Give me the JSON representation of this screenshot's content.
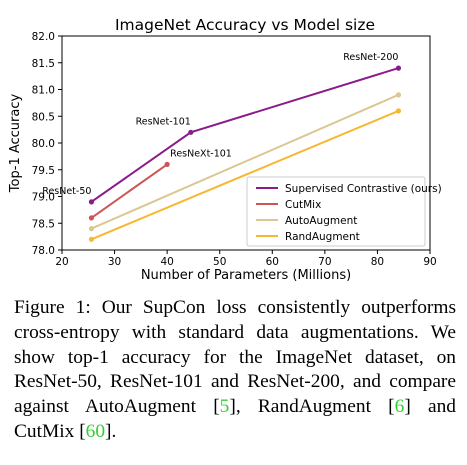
{
  "chart_data": {
    "type": "line",
    "title": "ImageNet Accuracy vs Model size",
    "xlabel": "Number of Parameters (Millions)",
    "ylabel": "Top-1 Accuracy",
    "xlim": [
      20,
      90
    ],
    "ylim": [
      78.0,
      82.0
    ],
    "xticks": [
      20,
      30,
      40,
      50,
      60,
      70,
      80,
      90
    ],
    "yticks": [
      78.0,
      78.5,
      79.0,
      79.5,
      80.0,
      80.5,
      81.0,
      81.5,
      82.0
    ],
    "grid": false,
    "legend_position": "lower-right",
    "series": [
      {
        "name": "Supervised Contrastive (ours)",
        "color": "#8b1a8b",
        "x": [
          25.6,
          44.5,
          84.0
        ],
        "y": [
          78.9,
          80.2,
          81.4
        ]
      },
      {
        "name": "CutMix",
        "color": "#cc5555",
        "x": [
          25.6,
          40.0
        ],
        "y": [
          78.6,
          79.6
        ]
      },
      {
        "name": "AutoAugment",
        "color": "#d9c891",
        "x": [
          25.6,
          84.0
        ],
        "y": [
          78.4,
          80.9
        ]
      },
      {
        "name": "RandAugment",
        "color": "#f7b731",
        "x": [
          25.6,
          84.0
        ],
        "y": [
          78.2,
          80.6
        ]
      }
    ],
    "annotations": [
      {
        "text": "ResNet-50",
        "x": 25.6,
        "y": 78.9,
        "anchor": "end"
      },
      {
        "text": "ResNet-101",
        "x": 44.5,
        "y": 80.2,
        "anchor": "end"
      },
      {
        "text": "ResNeXt-101",
        "x": 40.0,
        "y": 79.6,
        "anchor": "start"
      },
      {
        "text": "ResNet-200",
        "x": 84.0,
        "y": 81.4,
        "anchor": "end"
      }
    ]
  },
  "caption": {
    "lead": "Figure 1: Our SupCon loss consistently outperforms cross-entropy with standard data augmentations. We show top-1 accuracy for the ImageNet dataset, on ResNet-50, ResNet-101 and ResNet-200, and compare against AutoAugment [",
    "cite1": "5",
    "mid1": "], RandAugment [",
    "cite2": "6",
    "mid2": "] and CutMix [",
    "cite3": "60",
    "end": "]."
  }
}
